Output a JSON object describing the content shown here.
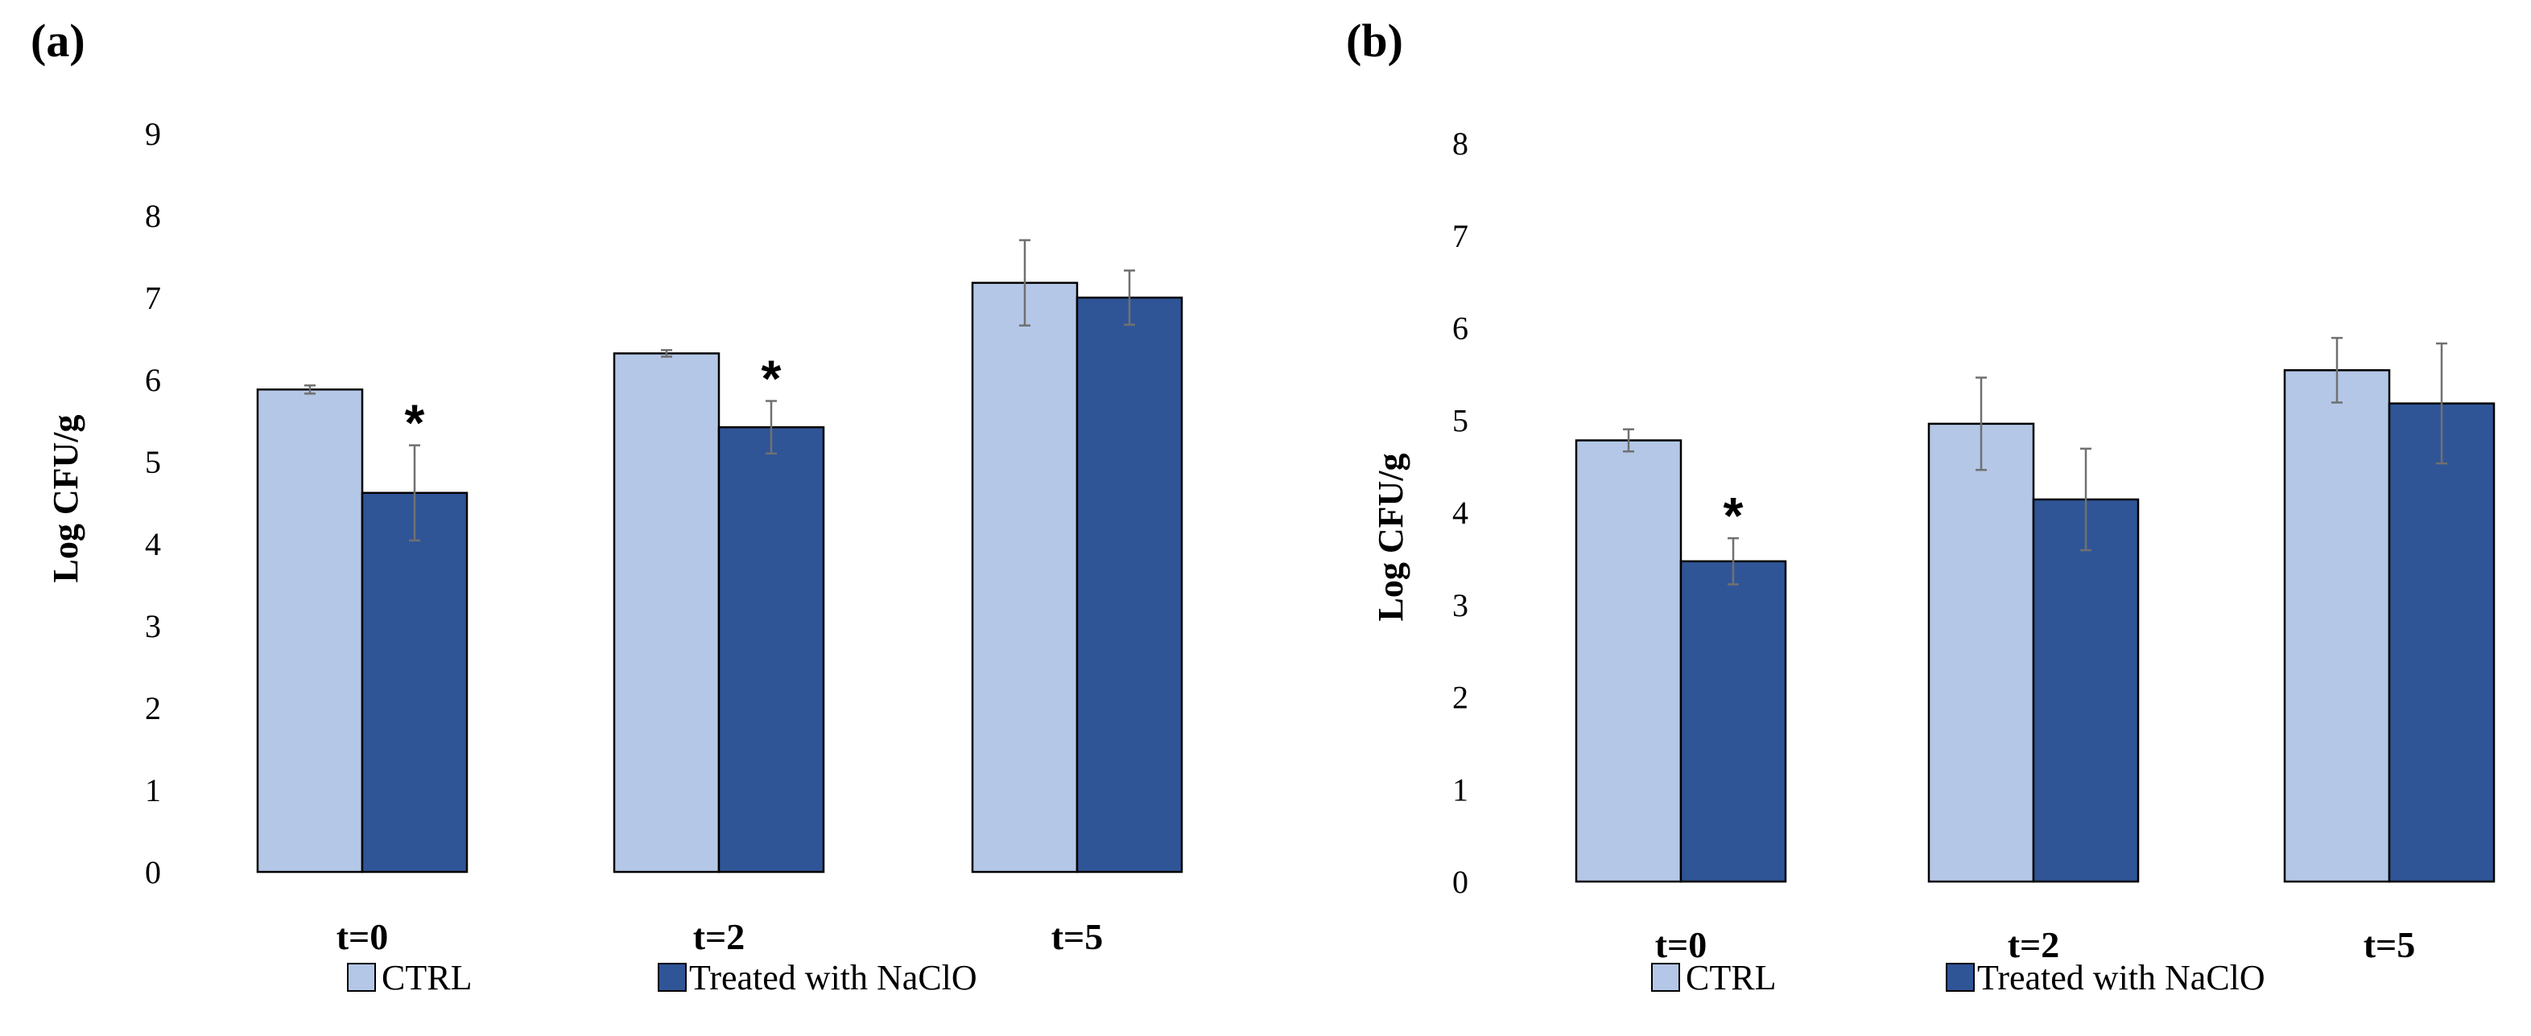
{
  "chart_data": [
    {
      "panel": "(a)",
      "type": "bar",
      "title": "",
      "xlabel": "",
      "ylabel": "Log CFU/g",
      "ylim": [
        0,
        9
      ],
      "yticks": [
        0,
        1,
        2,
        3,
        4,
        5,
        6,
        7,
        8,
        9
      ],
      "grid": false,
      "categories": [
        "t=0",
        "t=2",
        "t=5"
      ],
      "series": [
        {
          "name": "CTRL",
          "color": "#b4c7e7",
          "values": [
            5.88,
            6.32,
            7.18
          ],
          "errors": [
            0.05,
            0.04,
            0.52
          ]
        },
        {
          "name": "Treated with NaClO",
          "color": "#2f5597",
          "values": [
            4.62,
            5.42,
            7.0
          ],
          "errors": [
            0.58,
            0.32,
            0.33
          ]
        }
      ],
      "annotations": [
        {
          "category": "t=0",
          "series": "Treated with NaClO",
          "text": "*"
        },
        {
          "category": "t=2",
          "series": "Treated with NaClO",
          "text": "*"
        }
      ],
      "legend": [
        "CTRL",
        "Treated with NaClO"
      ],
      "legend_placement": "bottom"
    },
    {
      "panel": "(b)",
      "type": "bar",
      "title": "",
      "xlabel": "",
      "ylabel": "Log CFU/g",
      "ylim": [
        0,
        8
      ],
      "yticks": [
        0,
        1,
        2,
        3,
        4,
        5,
        6,
        7,
        8
      ],
      "grid": false,
      "categories": [
        "t=0",
        "t=2",
        "t=5"
      ],
      "series": [
        {
          "name": "CTRL",
          "color": "#b4c7e7",
          "values": [
            4.78,
            4.96,
            5.54
          ],
          "errors": [
            0.12,
            0.5,
            0.35
          ]
        },
        {
          "name": "Treated with NaClO",
          "color": "#2f5597",
          "values": [
            3.47,
            4.14,
            5.18
          ],
          "errors": [
            0.25,
            0.55,
            0.65
          ]
        }
      ],
      "annotations": [
        {
          "category": "t=0",
          "series": "Treated with NaClO",
          "text": "*"
        }
      ],
      "legend": [
        "CTRL",
        "Treated with NaClO"
      ],
      "legend_placement": "bottom"
    }
  ]
}
